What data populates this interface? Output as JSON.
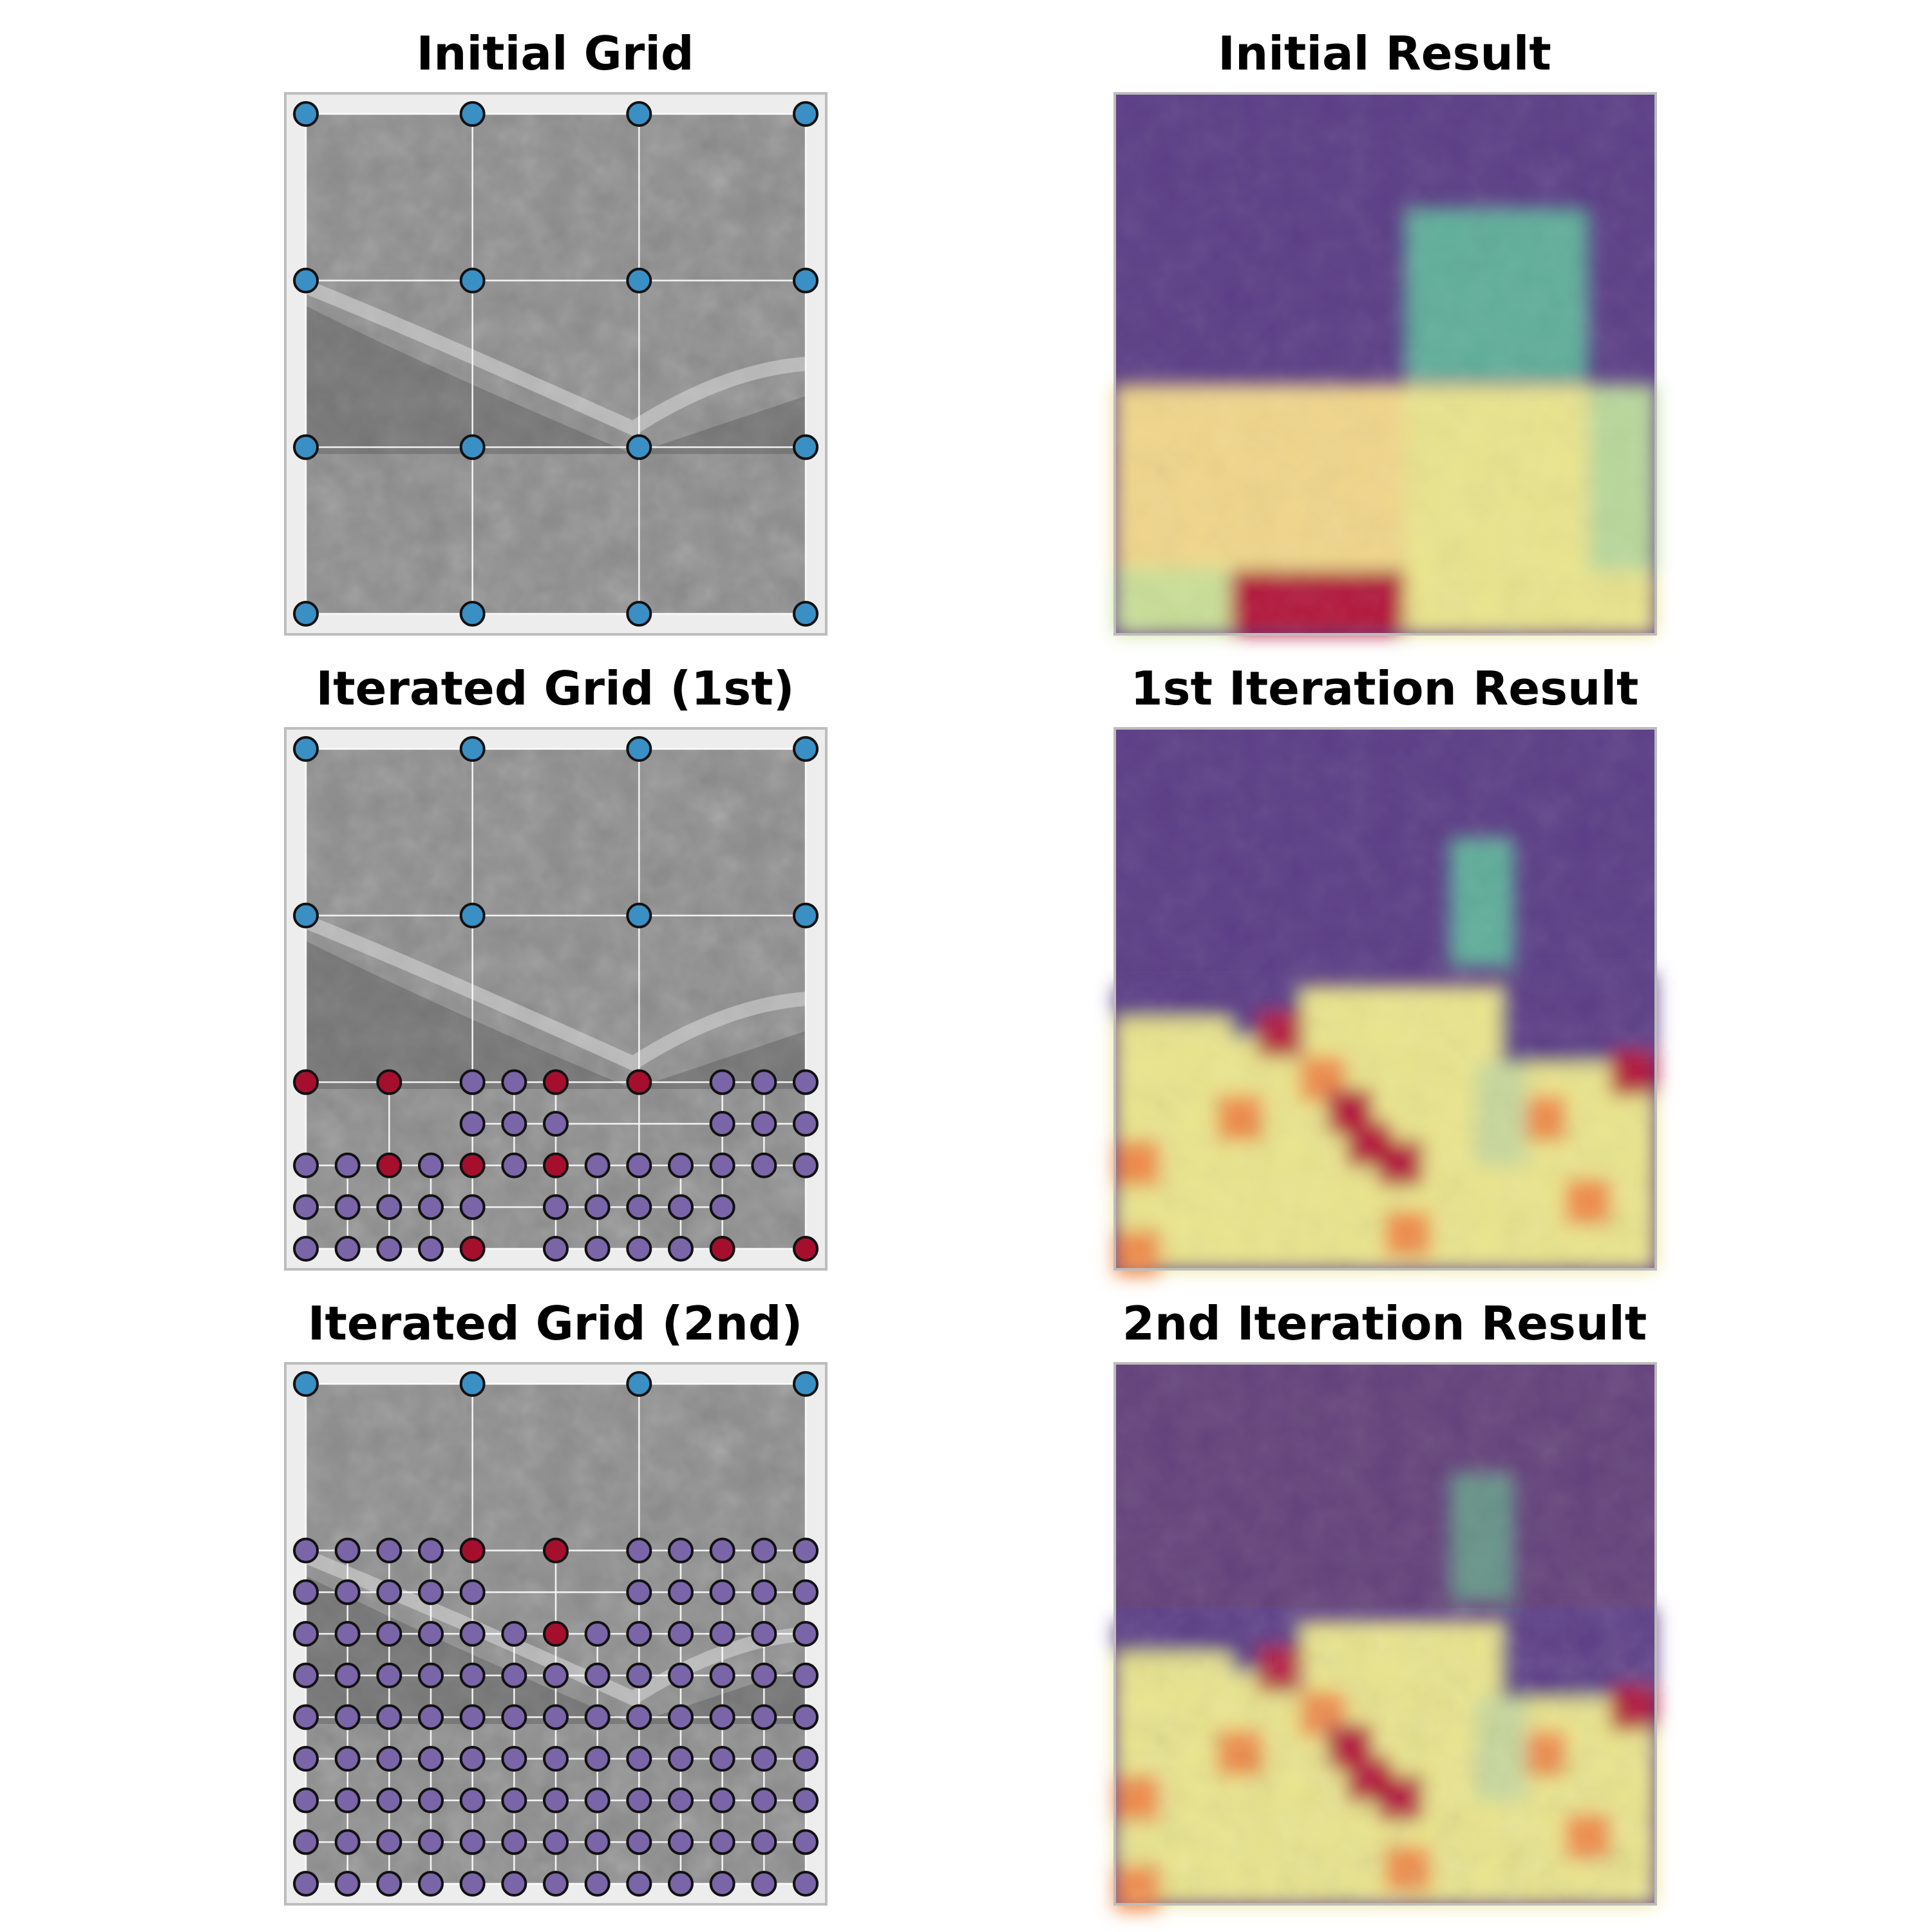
{
  "panels": [
    {
      "title": "Initial Grid",
      "kind": "grid",
      "stage": 0
    },
    {
      "title": "Initial Result",
      "kind": "result",
      "stage": 0
    },
    {
      "title": "Iterated Grid (1st)",
      "kind": "grid",
      "stage": 1
    },
    {
      "title": "1st Iteration Result",
      "kind": "result",
      "stage": 1
    },
    {
      "title": "Iterated Grid (2nd)",
      "kind": "grid",
      "stage": 2
    },
    {
      "title": "2nd Iteration Result",
      "kind": "result",
      "stage": 2
    }
  ],
  "colors": {
    "coarse_point": "#3a8fc4",
    "refined_point": "#7a65a8",
    "flagged_point": "#a50f2d",
    "point_edge": "#111111",
    "image_gray": "#8c8c8c",
    "panel_bg": "#ededed",
    "heat_low": "#5b3d86",
    "heat_mid": "#5fae9a",
    "heat_high": "#e9e48c",
    "heat_orange": "#ee8a4a",
    "heat_peak": "#b2123a"
  }
}
